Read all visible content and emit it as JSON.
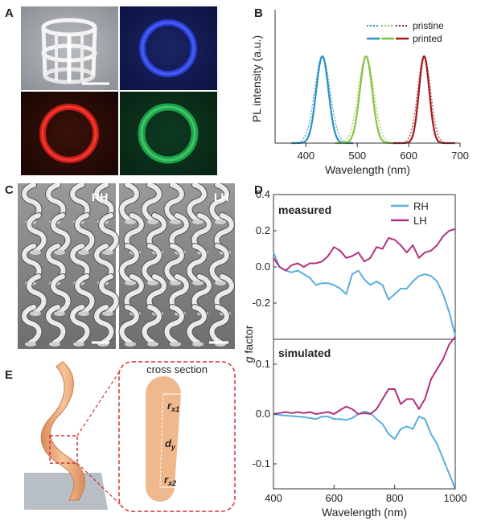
{
  "panels": {
    "A": "A",
    "B": "B",
    "C": "C",
    "D": "D",
    "E": "E"
  },
  "colors": {
    "blue": "#2a8fc6",
    "green": "#86c440",
    "red": "#a01c1c",
    "rh": "#5aaedc",
    "lh": "#b2317d",
    "flesh": "#f0b88d"
  },
  "panel_a": {
    "tiles": [
      "white-sem-cage",
      "blue-fluorescence-ring",
      "red-fluorescence-ring",
      "green-fluorescence-ring"
    ]
  },
  "panel_c": {
    "rh_label": "RH",
    "lh_label": "LH"
  },
  "panel_e": {
    "title": "cross section",
    "rx1_main": "r",
    "rx1_sub": "x1",
    "dy_main": "d",
    "dy_sub": "y",
    "rx2_main": "r",
    "rx2_sub": "x2"
  },
  "chart_data": [
    {
      "type": "line",
      "panel": "B",
      "xlabel": "Wavelength (nm)",
      "ylabel": "PL intensity (a.u.)",
      "xlim": [
        340,
        700
      ],
      "xticks": [
        "400",
        "500",
        "600",
        "700"
      ],
      "legend": {
        "placement": "top-right",
        "entries": [
          "pristine",
          "printed"
        ],
        "styles": [
          "dotted",
          "solid"
        ]
      },
      "series": [
        {
          "color": "#2a8fc6",
          "peak": 432,
          "width": 12
        },
        {
          "color": "#86c440",
          "peak": 517,
          "width": 12
        },
        {
          "color": "#a01c1c",
          "peak": 630,
          "width": 10
        }
      ]
    },
    {
      "type": "line",
      "panel": "D",
      "ylabel_italic": "g",
      "ylabel_rest": " factor",
      "xlabel": "Wavelength (nm)",
      "xlim": [
        400,
        1000
      ],
      "xticks": [
        "400",
        "600",
        "800",
        "1000"
      ],
      "subplots": [
        {
          "title": "measured",
          "ylim": [
            -0.4,
            0.4
          ],
          "yticks": [
            "0.4",
            "0.2",
            "0.0",
            "-0.2"
          ],
          "ytick_values": [
            0.4,
            0.2,
            0.0,
            -0.2
          ],
          "legend": [
            "RH",
            "LH"
          ],
          "x": [
            400,
            420,
            440,
            460,
            480,
            500,
            520,
            540,
            560,
            580,
            600,
            620,
            640,
            660,
            680,
            700,
            720,
            740,
            760,
            780,
            800,
            820,
            840,
            860,
            880,
            900,
            920,
            940,
            960,
            980,
            1000
          ],
          "rh": [
            0.08,
            0.0,
            -0.02,
            -0.03,
            -0.02,
            -0.04,
            -0.06,
            -0.1,
            -0.09,
            -0.09,
            -0.1,
            -0.12,
            -0.15,
            -0.04,
            -0.02,
            -0.07,
            -0.1,
            -0.08,
            -0.1,
            -0.18,
            -0.15,
            -0.12,
            -0.12,
            -0.08,
            -0.05,
            -0.04,
            -0.05,
            -0.08,
            -0.15,
            -0.25,
            -0.38
          ],
          "lh": [
            0.05,
            0.0,
            -0.02,
            0.01,
            0.02,
            0.0,
            0.02,
            0.02,
            0.03,
            0.06,
            0.11,
            0.09,
            0.05,
            0.06,
            0.08,
            0.03,
            0.05,
            0.11,
            0.1,
            0.16,
            0.15,
            0.12,
            0.08,
            0.12,
            0.05,
            0.08,
            0.09,
            0.12,
            0.17,
            0.2,
            0.21
          ]
        },
        {
          "title": "simulated",
          "ylim": [
            -0.15,
            0.15
          ],
          "yticks": [
            "0.1",
            "0.0",
            "-0.1"
          ],
          "ytick_values": [
            0.1,
            0.0,
            -0.1
          ],
          "x": [
            400,
            420,
            440,
            460,
            480,
            500,
            520,
            540,
            560,
            580,
            600,
            620,
            640,
            660,
            680,
            700,
            720,
            740,
            760,
            780,
            800,
            820,
            840,
            860,
            880,
            900,
            920,
            940,
            960,
            980,
            1000
          ],
          "rh": [
            0.0,
            -0.002,
            -0.003,
            -0.004,
            -0.005,
            -0.006,
            -0.008,
            -0.01,
            -0.005,
            -0.005,
            -0.01,
            -0.01,
            -0.012,
            -0.008,
            0.0,
            0.005,
            0.002,
            -0.01,
            -0.02,
            -0.04,
            -0.05,
            -0.03,
            -0.025,
            -0.03,
            -0.005,
            -0.01,
            -0.04,
            -0.06,
            -0.09,
            -0.12,
            -0.15
          ],
          "lh": [
            0.0,
            0.002,
            0.004,
            0.002,
            0.004,
            0.002,
            0.004,
            0.0,
            0.002,
            0.004,
            0.0,
            0.008,
            0.015,
            0.01,
            0.0,
            0.002,
            0.0,
            0.01,
            0.03,
            0.05,
            0.05,
            0.02,
            0.03,
            0.03,
            0.01,
            0.03,
            0.07,
            0.09,
            0.11,
            0.14,
            0.155
          ]
        }
      ]
    }
  ]
}
